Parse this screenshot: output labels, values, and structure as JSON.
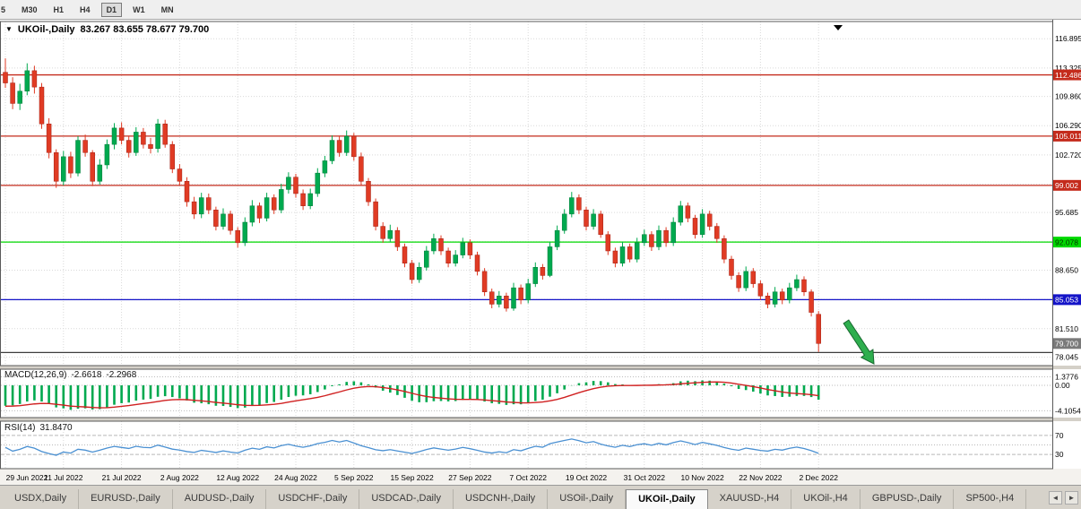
{
  "colors": {
    "bull": "#00a94f",
    "bear": "#e03b24",
    "bull_edge": "#007a38",
    "bear_edge": "#a32013",
    "grid": "#d9d9d9",
    "macd_hist": "#00a94f",
    "macd_signal": "#d02020",
    "rsi_line": "#4a90d2",
    "arrow": "#2eae4e",
    "arrow_edge": "#17692f",
    "frame": "#5a5a5a"
  },
  "toolbar": {
    "timeframes": [
      {
        "label": "5",
        "active": false
      },
      {
        "label": "M30",
        "active": false
      },
      {
        "label": "H1",
        "active": false
      },
      {
        "label": "H4",
        "active": false
      },
      {
        "label": "D1",
        "active": true
      },
      {
        "label": "W1",
        "active": false
      },
      {
        "label": "MN",
        "active": false
      }
    ]
  },
  "chart": {
    "symbol": "UKOil-,Daily",
    "ohlc_text": "83.267 83.655 78.677 79.700",
    "collapse_icon": "▼",
    "price_axis_labels": [
      116.895,
      113.325,
      109.86,
      106.29,
      102.72,
      99.15,
      95.685,
      92.115,
      88.65,
      85.08,
      81.51,
      78.045
    ],
    "levels": [
      {
        "price": 112.486,
        "label": "112.486",
        "type": "resistance",
        "color": "#c42b1c",
        "text_color": "#ffffff"
      },
      {
        "price": 105.011,
        "label": "105.011",
        "type": "resistance",
        "color": "#c42b1c",
        "text_color": "#ffffff"
      },
      {
        "price": 99.002,
        "label": "99.002",
        "type": "resistance",
        "color": "#c42b1c",
        "text_color": "#ffffff"
      },
      {
        "price": 92.078,
        "label": "92.078",
        "type": "support",
        "color": "#00d800",
        "text_color": "#003300"
      },
      {
        "price": 85.053,
        "label": "85.053",
        "type": "support",
        "color": "#1414c8",
        "text_color": "#ffffff"
      },
      {
        "price": 78.6,
        "label": "",
        "type": "support",
        "color": "#3c3c3c",
        "text_color": "#ffffff"
      }
    ],
    "current_price": {
      "value": "79.700",
      "badge_color": "#7a7a7a",
      "text_color": "#ffffff"
    }
  },
  "macd": {
    "name": "MACD(12,26,9)",
    "value_main": "-2.6618",
    "value_signal": "-2.2968",
    "axis_labels": [
      "1.3776",
      "0.00",
      "-4.1054"
    ],
    "axis_values": [
      1.3776,
      0,
      -4.1054
    ]
  },
  "rsi": {
    "name": "RSI(14)",
    "value": "31.8470",
    "axis_labels": [
      "70",
      "30"
    ],
    "axis_values": [
      70,
      30
    ],
    "level_lines": [
      70,
      50,
      30
    ]
  },
  "chart_data": {
    "type": "candlestick",
    "symbol": "UKOil-",
    "timeframe": "Daily",
    "ohlc_current": {
      "open": 83.267,
      "high": 83.655,
      "low": 78.677,
      "close": 79.7
    },
    "y_range": [
      77.0,
      119.0
    ],
    "ticks_every": 8,
    "date_ticks": [
      "29 Jun 2022",
      "11 Jul 2022",
      "21 Jul 2022",
      "2 Aug 2022",
      "12 Aug 2022",
      "24 Aug 2022",
      "5 Sep 2022",
      "15 Sep 2022",
      "27 Sep 2022",
      "7 Oct 2022",
      "19 Oct 2022",
      "31 Oct 2022",
      "10 Nov 2022",
      "22 Nov 2022",
      "2 Dec 2022"
    ],
    "candles": [
      [
        112.8,
        114.5,
        110.9,
        111.5
      ],
      [
        111.5,
        112.2,
        108.3,
        109.0
      ],
      [
        109.0,
        111.4,
        108.2,
        110.5
      ],
      [
        110.5,
        113.9,
        110.0,
        113.0
      ],
      [
        113.0,
        113.6,
        110.2,
        111.0
      ],
      [
        111.0,
        111.5,
        105.9,
        106.5
      ],
      [
        106.5,
        107.2,
        102.3,
        103.0
      ],
      [
        103.0,
        103.4,
        98.7,
        99.5
      ],
      [
        99.5,
        103.2,
        99.0,
        102.5
      ],
      [
        102.5,
        103.1,
        99.9,
        100.5
      ],
      [
        100.5,
        105.0,
        100.1,
        104.5
      ],
      [
        104.5,
        105.2,
        102.5,
        103.0
      ],
      [
        103.0,
        103.3,
        98.9,
        99.5
      ],
      [
        99.5,
        102.2,
        99.1,
        101.5
      ],
      [
        101.5,
        104.6,
        101.0,
        104.0
      ],
      [
        104.0,
        106.6,
        103.4,
        106.0
      ],
      [
        106.0,
        106.7,
        104.0,
        104.5
      ],
      [
        104.5,
        105.0,
        102.4,
        103.0
      ],
      [
        103.0,
        106.1,
        102.6,
        105.5
      ],
      [
        105.5,
        106.0,
        103.5,
        104.0
      ],
      [
        104.0,
        104.8,
        102.9,
        103.5
      ],
      [
        103.5,
        107.1,
        103.0,
        106.5
      ],
      [
        106.5,
        107.0,
        103.6,
        104.0
      ],
      [
        104.0,
        104.4,
        100.5,
        101.0
      ],
      [
        101.0,
        101.6,
        99.0,
        99.5
      ],
      [
        99.5,
        100.0,
        96.4,
        97.0
      ],
      [
        97.0,
        97.6,
        94.9,
        95.5
      ],
      [
        95.5,
        98.1,
        95.0,
        97.5
      ],
      [
        97.5,
        98.0,
        95.5,
        96.0
      ],
      [
        96.0,
        96.4,
        93.5,
        94.0
      ],
      [
        94.0,
        96.2,
        93.6,
        95.5
      ],
      [
        95.5,
        95.9,
        93.0,
        93.5
      ],
      [
        93.5,
        93.9,
        91.4,
        92.0
      ],
      [
        92.0,
        95.1,
        91.6,
        94.5
      ],
      [
        94.5,
        97.2,
        94.0,
        96.5
      ],
      [
        96.5,
        96.9,
        94.4,
        95.0
      ],
      [
        95.0,
        98.1,
        94.6,
        97.5
      ],
      [
        97.5,
        97.9,
        95.5,
        96.0
      ],
      [
        96.0,
        99.2,
        95.6,
        98.5
      ],
      [
        98.5,
        100.6,
        98.0,
        100.0
      ],
      [
        100.0,
        100.4,
        97.5,
        98.0
      ],
      [
        98.0,
        98.5,
        96.0,
        96.5
      ],
      [
        96.5,
        98.6,
        96.1,
        98.0
      ],
      [
        98.0,
        101.1,
        97.6,
        100.5
      ],
      [
        100.5,
        102.6,
        100.0,
        102.0
      ],
      [
        102.0,
        105.1,
        101.6,
        104.5
      ],
      [
        104.5,
        105.0,
        102.5,
        103.0
      ],
      [
        103.0,
        105.7,
        102.6,
        105.0
      ],
      [
        105.0,
        105.4,
        102.0,
        102.5
      ],
      [
        102.5,
        103.0,
        99.0,
        99.5
      ],
      [
        99.5,
        99.9,
        96.5,
        97.0
      ],
      [
        97.0,
        97.4,
        93.5,
        94.0
      ],
      [
        94.0,
        94.5,
        92.0,
        92.5
      ],
      [
        92.5,
        94.2,
        92.1,
        93.5
      ],
      [
        93.5,
        93.9,
        91.0,
        91.5
      ],
      [
        91.5,
        91.9,
        89.0,
        89.5
      ],
      [
        89.5,
        89.9,
        87.0,
        87.5
      ],
      [
        87.5,
        89.6,
        87.1,
        89.0
      ],
      [
        89.0,
        91.6,
        88.6,
        91.0
      ],
      [
        91.0,
        93.1,
        90.6,
        92.5
      ],
      [
        92.5,
        92.9,
        90.5,
        91.0
      ],
      [
        91.0,
        91.4,
        89.0,
        89.5
      ],
      [
        89.5,
        91.1,
        89.1,
        90.5
      ],
      [
        90.5,
        92.6,
        90.1,
        92.0
      ],
      [
        92.0,
        92.4,
        90.0,
        90.5
      ],
      [
        90.5,
        90.9,
        88.0,
        88.5
      ],
      [
        88.5,
        88.9,
        85.5,
        86.0
      ],
      [
        86.0,
        86.4,
        84.0,
        84.5
      ],
      [
        84.5,
        86.1,
        84.1,
        85.5
      ],
      [
        85.5,
        85.9,
        83.6,
        84.0
      ],
      [
        84.0,
        87.1,
        83.7,
        86.5
      ],
      [
        86.5,
        86.9,
        84.5,
        85.0
      ],
      [
        85.0,
        87.6,
        84.6,
        87.0
      ],
      [
        87.0,
        89.6,
        86.6,
        89.0
      ],
      [
        89.0,
        89.4,
        87.5,
        88.0
      ],
      [
        88.0,
        92.1,
        87.8,
        91.5
      ],
      [
        91.5,
        94.1,
        91.1,
        93.5
      ],
      [
        93.5,
        96.1,
        93.1,
        95.5
      ],
      [
        95.5,
        98.2,
        95.1,
        97.5
      ],
      [
        97.5,
        97.9,
        95.5,
        96.0
      ],
      [
        96.0,
        96.4,
        93.5,
        94.0
      ],
      [
        94.0,
        96.1,
        93.6,
        95.5
      ],
      [
        95.5,
        95.9,
        92.6,
        93.0
      ],
      [
        93.0,
        93.4,
        90.5,
        91.0
      ],
      [
        91.0,
        91.4,
        89.0,
        89.5
      ],
      [
        89.5,
        92.1,
        89.1,
        91.5
      ],
      [
        91.5,
        91.9,
        89.6,
        90.0
      ],
      [
        90.0,
        92.6,
        89.6,
        92.0
      ],
      [
        92.0,
        93.6,
        91.6,
        93.0
      ],
      [
        93.0,
        93.4,
        91.0,
        91.5
      ],
      [
        91.5,
        94.1,
        91.1,
        93.5
      ],
      [
        93.5,
        93.9,
        91.5,
        92.0
      ],
      [
        92.0,
        95.1,
        91.6,
        94.5
      ],
      [
        94.5,
        97.1,
        94.1,
        96.5
      ],
      [
        96.5,
        96.9,
        94.5,
        95.0
      ],
      [
        95.0,
        95.4,
        92.5,
        93.0
      ],
      [
        93.0,
        96.1,
        92.6,
        95.5
      ],
      [
        95.5,
        95.9,
        93.5,
        94.0
      ],
      [
        94.0,
        94.4,
        92.0,
        92.5
      ],
      [
        92.5,
        92.9,
        89.5,
        90.0
      ],
      [
        90.0,
        90.4,
        87.5,
        88.0
      ],
      [
        88.0,
        88.4,
        86.0,
        86.5
      ],
      [
        86.5,
        89.1,
        86.1,
        88.5
      ],
      [
        88.5,
        88.9,
        86.5,
        87.0
      ],
      [
        87.0,
        87.4,
        85.0,
        85.5
      ],
      [
        85.5,
        85.9,
        84.0,
        84.5
      ],
      [
        84.5,
        86.6,
        84.1,
        86.0
      ],
      [
        86.0,
        86.4,
        84.5,
        85.0
      ],
      [
        85.0,
        87.1,
        84.6,
        86.5
      ],
      [
        86.5,
        88.1,
        86.1,
        87.5
      ],
      [
        87.5,
        87.9,
        85.5,
        86.0
      ],
      [
        86.0,
        86.3,
        83.0,
        83.5
      ],
      [
        83.267,
        83.655,
        78.677,
        79.7
      ]
    ]
  },
  "tabs": {
    "items": [
      {
        "label": "USDX,Daily",
        "active": false
      },
      {
        "label": "EURUSD-,Daily",
        "active": false
      },
      {
        "label": "AUDUSD-,Daily",
        "active": false
      },
      {
        "label": "USDCHF-,Daily",
        "active": false
      },
      {
        "label": "USDCAD-,Daily",
        "active": false
      },
      {
        "label": "USDCNH-,Daily",
        "active": false
      },
      {
        "label": "USOil-,Daily",
        "active": false
      },
      {
        "label": "UKOil-,Daily",
        "active": true
      },
      {
        "label": "XAUUSD-,H4",
        "active": false
      },
      {
        "label": "UKOil-,H4",
        "active": false
      },
      {
        "label": "GBPUSD-,Daily",
        "active": false
      },
      {
        "label": "SP500-,H4",
        "active": false
      }
    ],
    "scroll_left": "◄",
    "scroll_right": "►"
  }
}
